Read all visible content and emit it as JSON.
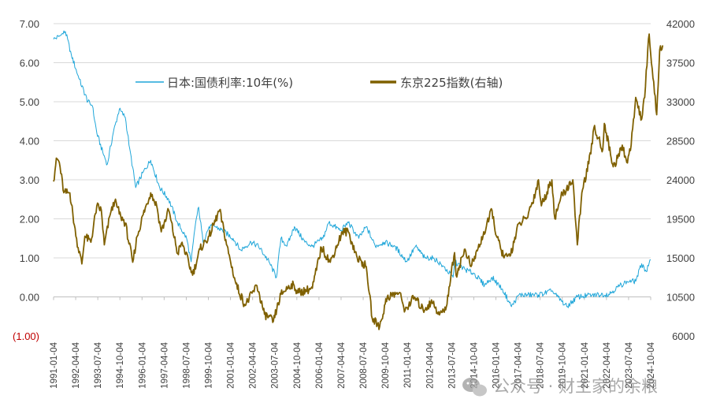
{
  "chart_data": {
    "type": "line",
    "legend_position": "top",
    "grid": "horizontal",
    "y_left": {
      "range": [
        -1,
        7
      ],
      "ticks": [
        -1,
        0,
        1,
        2,
        3,
        4,
        5,
        6,
        7
      ],
      "tick_labels": [
        "(1.00)",
        "0.00",
        "1.00",
        "2.00",
        "3.00",
        "4.00",
        "5.00",
        "6.00",
        "7.00"
      ],
      "negative_color": "#c00000"
    },
    "y_right": {
      "range": [
        6000,
        42000
      ],
      "ticks": [
        6000,
        10500,
        15000,
        19500,
        24000,
        28500,
        33000,
        37500,
        42000
      ],
      "tick_labels": [
        "6000",
        "10500",
        "15000",
        "19500",
        "24000",
        "28500",
        "33000",
        "37500",
        "42000"
      ]
    },
    "x_range": [
      "1991-01-04",
      "2024-04-01"
    ],
    "x_tick_labels": [
      "1991-01-04",
      "1992-04-04",
      "1993-07-04",
      "1994-10-04",
      "1996-01-04",
      "1997-04-04",
      "1998-07-04",
      "1999-10-04",
      "2001-01-04",
      "2002-04-04",
      "2003-07-04",
      "2004-10-04",
      "2006-01-04",
      "2007-04-04",
      "2008-07-04",
      "2009-10-04",
      "2011-01-04",
      "2012-04-04",
      "2013-07-04",
      "2014-10-04",
      "2016-01-04",
      "2017-04-04",
      "2018-07-04",
      "2019-10-04",
      "2021-01-04",
      "2022-04-04",
      "2023-07-04",
      "2024-10-04"
    ],
    "series": [
      {
        "name": "日本:国债利率:10年(%)",
        "axis": "left",
        "color": "#1fa6d9",
        "points": [
          [
            "1991-01-04",
            6.6
          ],
          [
            "1991-06-01",
            6.7
          ],
          [
            "1991-09-01",
            6.8
          ],
          [
            "1992-01-01",
            6.2
          ],
          [
            "1992-06-01",
            5.6
          ],
          [
            "1992-12-01",
            5.0
          ],
          [
            "1993-03-01",
            4.9
          ],
          [
            "1993-06-01",
            4.2
          ],
          [
            "1993-10-01",
            3.7
          ],
          [
            "1994-01-01",
            3.4
          ],
          [
            "1994-05-01",
            4.2
          ],
          [
            "1994-09-01",
            4.8
          ],
          [
            "1995-01-01",
            4.6
          ],
          [
            "1995-04-01",
            3.8
          ],
          [
            "1995-08-01",
            2.8
          ],
          [
            "1996-01-01",
            3.2
          ],
          [
            "1996-06-01",
            3.5
          ],
          [
            "1996-12-01",
            2.8
          ],
          [
            "1997-06-01",
            2.5
          ],
          [
            "1997-12-01",
            1.9
          ],
          [
            "1998-06-01",
            1.5
          ],
          [
            "1998-09-01",
            0.9
          ],
          [
            "1998-12-01",
            1.9
          ],
          [
            "1999-02-01",
            2.3
          ],
          [
            "1999-05-01",
            1.4
          ],
          [
            "1999-09-01",
            1.8
          ],
          [
            "2000-01-01",
            1.8
          ],
          [
            "2000-06-01",
            1.7
          ],
          [
            "2001-01-01",
            1.5
          ],
          [
            "2001-06-01",
            1.2
          ],
          [
            "2002-01-01",
            1.4
          ],
          [
            "2002-06-01",
            1.3
          ],
          [
            "2003-01-01",
            0.9
          ],
          [
            "2003-06-01",
            0.5
          ],
          [
            "2003-09-01",
            1.5
          ],
          [
            "2004-01-01",
            1.3
          ],
          [
            "2004-06-01",
            1.8
          ],
          [
            "2005-01-01",
            1.4
          ],
          [
            "2005-06-01",
            1.3
          ],
          [
            "2006-01-01",
            1.5
          ],
          [
            "2006-05-01",
            1.9
          ],
          [
            "2007-01-01",
            1.7
          ],
          [
            "2007-06-01",
            1.9
          ],
          [
            "2008-01-01",
            1.5
          ],
          [
            "2008-06-01",
            1.8
          ],
          [
            "2008-12-01",
            1.3
          ],
          [
            "2009-06-01",
            1.4
          ],
          [
            "2010-01-01",
            1.3
          ],
          [
            "2010-09-01",
            0.9
          ],
          [
            "2011-03-01",
            1.3
          ],
          [
            "2011-09-01",
            1.0
          ],
          [
            "2012-03-01",
            1.0
          ],
          [
            "2012-09-01",
            0.8
          ],
          [
            "2013-04-01",
            0.5
          ],
          [
            "2013-05-01",
            0.9
          ],
          [
            "2013-12-01",
            0.7
          ],
          [
            "2014-06-01",
            0.6
          ],
          [
            "2015-01-01",
            0.3
          ],
          [
            "2015-06-01",
            0.5
          ],
          [
            "2016-01-01",
            0.2
          ],
          [
            "2016-07-01",
            -0.25
          ],
          [
            "2016-12-01",
            0.05
          ],
          [
            "2018-01-01",
            0.05
          ],
          [
            "2018-10-01",
            0.15
          ],
          [
            "2019-08-01",
            -0.25
          ],
          [
            "2020-03-01",
            0.0
          ],
          [
            "2021-01-01",
            0.05
          ],
          [
            "2021-12-01",
            0.07
          ],
          [
            "2022-06-01",
            0.25
          ],
          [
            "2022-12-01",
            0.4
          ],
          [
            "2023-06-01",
            0.4
          ],
          [
            "2023-10-01",
            0.85
          ],
          [
            "2024-01-01",
            0.65
          ],
          [
            "2024-04-01",
            0.95
          ]
        ]
      },
      {
        "name": "东京225指数(右轴)",
        "axis": "right",
        "color": "#7f6000",
        "points": [
          [
            "1991-01-04",
            23800
          ],
          [
            "1991-03-01",
            26500
          ],
          [
            "1991-05-01",
            26000
          ],
          [
            "1991-08-01",
            22500
          ],
          [
            "1991-12-01",
            22500
          ],
          [
            "1992-04-01",
            17500
          ],
          [
            "1992-08-01",
            14300
          ],
          [
            "1992-10-01",
            17500
          ],
          [
            "1993-02-01",
            16800
          ],
          [
            "1993-06-01",
            21000
          ],
          [
            "1993-09-01",
            20500
          ],
          [
            "1993-11-01",
            16500
          ],
          [
            "1994-03-01",
            20000
          ],
          [
            "1994-06-01",
            21500
          ],
          [
            "1994-10-01",
            19800
          ],
          [
            "1995-01-01",
            19000
          ],
          [
            "1995-06-01",
            14500
          ],
          [
            "1995-09-01",
            17500
          ],
          [
            "1996-01-01",
            20000
          ],
          [
            "1996-06-01",
            22500
          ],
          [
            "1996-10-01",
            21000
          ],
          [
            "1997-01-01",
            18000
          ],
          [
            "1997-06-01",
            20500
          ],
          [
            "1997-12-01",
            15500
          ],
          [
            "1998-03-01",
            16800
          ],
          [
            "1998-10-01",
            13000
          ],
          [
            "1999-03-01",
            16000
          ],
          [
            "1999-09-01",
            17500
          ],
          [
            "2000-04-01",
            20500
          ],
          [
            "2000-10-01",
            15500
          ],
          [
            "2001-03-01",
            12000
          ],
          [
            "2001-09-01",
            9500
          ],
          [
            "2002-05-01",
            11800
          ],
          [
            "2002-10-01",
            8500
          ],
          [
            "2003-04-01",
            7700
          ],
          [
            "2003-09-01",
            10800
          ],
          [
            "2004-04-01",
            12000
          ],
          [
            "2004-09-01",
            11000
          ],
          [
            "2005-06-01",
            11500
          ],
          [
            "2005-12-01",
            16200
          ],
          [
            "2006-06-01",
            14500
          ],
          [
            "2007-02-01",
            18000
          ],
          [
            "2007-06-01",
            18000
          ],
          [
            "2007-12-01",
            15000
          ],
          [
            "2008-06-01",
            14000
          ],
          [
            "2008-10-01",
            8000
          ],
          [
            "2009-03-01",
            7100
          ],
          [
            "2009-08-01",
            10500
          ],
          [
            "2010-04-01",
            11000
          ],
          [
            "2010-08-01",
            9000
          ],
          [
            "2011-02-01",
            10500
          ],
          [
            "2011-08-01",
            9000
          ],
          [
            "2012-03-01",
            10000
          ],
          [
            "2012-06-01",
            8500
          ],
          [
            "2012-11-01",
            9000
          ],
          [
            "2013-05-01",
            15600
          ],
          [
            "2013-06-01",
            13000
          ],
          [
            "2013-12-01",
            16000
          ],
          [
            "2014-04-01",
            14000
          ],
          [
            "2014-12-01",
            17500
          ],
          [
            "2015-06-01",
            20500
          ],
          [
            "2015-09-01",
            17500
          ],
          [
            "2016-02-01",
            15000
          ],
          [
            "2016-06-01",
            15200
          ],
          [
            "2016-12-01",
            19000
          ],
          [
            "2017-05-01",
            19500
          ],
          [
            "2017-11-01",
            22500
          ],
          [
            "2018-01-01",
            24000
          ],
          [
            "2018-03-01",
            21000
          ],
          [
            "2018-10-01",
            24000
          ],
          [
            "2018-12-01",
            19500
          ],
          [
            "2019-04-01",
            22000
          ],
          [
            "2019-12-01",
            24000
          ],
          [
            "2020-03-01",
            16500
          ],
          [
            "2020-06-01",
            22500
          ],
          [
            "2020-12-01",
            27000
          ],
          [
            "2021-02-01",
            30000
          ],
          [
            "2021-08-01",
            27500
          ],
          [
            "2021-09-01",
            30500
          ],
          [
            "2022-03-01",
            25500
          ],
          [
            "2022-06-01",
            26500
          ],
          [
            "2022-09-01",
            28000
          ],
          [
            "2022-12-01",
            26000
          ],
          [
            "2023-03-01",
            28000
          ],
          [
            "2023-06-01",
            33500
          ],
          [
            "2023-10-01",
            31000
          ],
          [
            "2023-12-01",
            33500
          ],
          [
            "2024-02-01",
            39000
          ],
          [
            "2024-03-01",
            40800
          ],
          [
            "2024-04-01",
            38500
          ],
          [
            "2024-08-01",
            31500
          ],
          [
            "2024-10-01",
            39000
          ],
          [
            "2024-12-01",
            39500
          ]
        ]
      }
    ]
  },
  "watermark": {
    "text": "公众号 · 财主家的余粮",
    "icon": "wechat-icon"
  }
}
